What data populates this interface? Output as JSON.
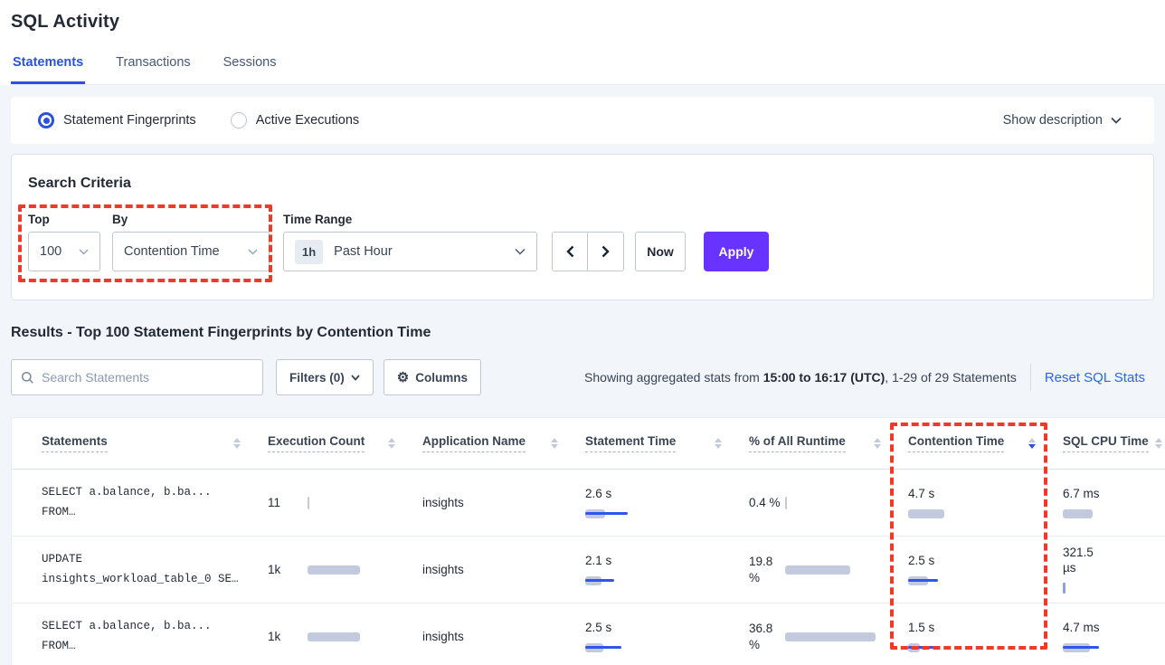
{
  "page": {
    "title": "SQL Activity"
  },
  "tabs": [
    {
      "label": "Statements",
      "active": true
    },
    {
      "label": "Transactions",
      "active": false
    },
    {
      "label": "Sessions",
      "active": false
    }
  ],
  "view_toggle": {
    "options": [
      {
        "label": "Statement Fingerprints",
        "selected": true
      },
      {
        "label": "Active Executions",
        "selected": false
      }
    ],
    "show_description": "Show description"
  },
  "search_criteria": {
    "title": "Search Criteria",
    "top": {
      "label": "Top",
      "value": "100"
    },
    "by": {
      "label": "By",
      "value": "Contention Time"
    },
    "time_range": {
      "label": "Time Range",
      "badge": "1h",
      "value": "Past Hour"
    },
    "now_label": "Now",
    "apply_label": "Apply"
  },
  "results": {
    "heading": "Results - Top 100 Statement Fingerprints by Contention Time",
    "search_placeholder": "Search Statements",
    "filters_label": "Filters (0)",
    "columns_label": "Columns",
    "stats_prefix": "Showing aggregated stats from ",
    "stats_bold": "15:00 to 16:17 (UTC)",
    "stats_suffix": ", 1-29 of 29 Statements",
    "reset_link": "Reset SQL Stats"
  },
  "colors": {
    "accent_blue": "#2a52dd",
    "link_blue": "#2667ef",
    "bar_gray": "#c4cadd",
    "bar_blue": "#2f55ee",
    "apply_purple": "#6933ff",
    "annotation_red": "#ee3b28"
  },
  "table": {
    "columns": [
      {
        "id": "statements",
        "label": "Statements",
        "sort": "none"
      },
      {
        "id": "execution_count",
        "label": "Execution Count",
        "sort": "none"
      },
      {
        "id": "application_name",
        "label": "Application Name",
        "sort": "none"
      },
      {
        "id": "statement_time",
        "label": "Statement Time",
        "sort": "none"
      },
      {
        "id": "runtime_pct",
        "label": "% of All Runtime",
        "sort": "none"
      },
      {
        "id": "contention_time",
        "label": "Contention Time",
        "sort": "desc"
      },
      {
        "id": "sql_cpu_time",
        "label": "SQL CPU Time",
        "sort": "none"
      }
    ],
    "rows": [
      {
        "statement": [
          "SELECT a.balance, b.ba...",
          "FROM…"
        ],
        "execution_count": {
          "text": "11",
          "bar": {
            "type": "tick",
            "w": 2,
            "h": 14
          }
        },
        "application_name": "insights",
        "statement_time": {
          "text": "2.6 s",
          "bar": {
            "gray": 22,
            "blue": 47
          }
        },
        "runtime_pct": {
          "text": "0.4 %",
          "bar": {
            "type": "tick",
            "w": 2,
            "h": 14
          }
        },
        "contention_time": {
          "text": "4.7 s",
          "bar": {
            "gray": 40,
            "blue": 0
          }
        },
        "sql_cpu_time": {
          "text": "6.7 ms",
          "bar": {
            "gray": 33,
            "blue": 0
          }
        }
      },
      {
        "statement": [
          "UPDATE",
          "insights_workload_table_0 SE…"
        ],
        "execution_count": {
          "text": "1k",
          "bar": {
            "gray": 58,
            "blue": 0
          }
        },
        "application_name": "insights",
        "statement_time": {
          "text": "2.1 s",
          "bar": {
            "gray": 18,
            "blue": 32
          }
        },
        "runtime_pct": {
          "text": "19.8 %",
          "bar": {
            "gray": 72,
            "blue": 0
          }
        },
        "contention_time": {
          "text": "2.5 s",
          "bar": {
            "gray": 22,
            "blue": 33
          }
        },
        "sql_cpu_time": {
          "text": "321.5 µs",
          "bar": {
            "type": "tick",
            "w": 3,
            "h": 12,
            "color": "#8fa0dc"
          }
        }
      },
      {
        "statement": [
          "SELECT a.balance, b.ba...",
          "FROM…"
        ],
        "execution_count": {
          "text": "1k",
          "bar": {
            "gray": 58,
            "blue": 0
          }
        },
        "application_name": "insights",
        "statement_time": {
          "text": "2.5 s",
          "bar": {
            "gray": 20,
            "blue": 40
          }
        },
        "runtime_pct": {
          "text": "36.8 %",
          "bar": {
            "gray": 100,
            "blue": 0
          }
        },
        "contention_time": {
          "text": "1.5 s",
          "bar": {
            "gray": 13,
            "blue": 28
          }
        },
        "sql_cpu_time": {
          "text": "4.7 ms",
          "bar": {
            "gray": 30,
            "blue": 40
          }
        }
      }
    ]
  }
}
